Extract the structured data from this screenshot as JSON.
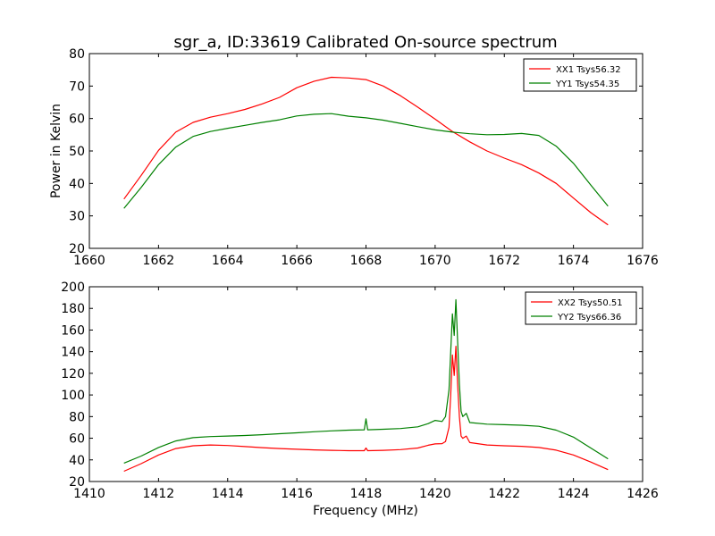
{
  "figure": {
    "title": "sgr_a, ID:33619 Calibrated On-source spectrum",
    "ylabel": "Power in Kelvin",
    "xlabel": "Frequency (MHz)"
  },
  "chart_data": [
    {
      "type": "line",
      "title": "sgr_a, ID:33619 Calibrated On-source spectrum",
      "xlabel": "",
      "ylabel": "Power in Kelvin",
      "xlim": [
        1660,
        1676
      ],
      "ylim": [
        20,
        80
      ],
      "xticks": [
        1660,
        1662,
        1664,
        1666,
        1668,
        1670,
        1672,
        1674,
        1676
      ],
      "yticks": [
        20,
        30,
        40,
        50,
        60,
        70,
        80
      ],
      "legend": "top-right",
      "grid": false,
      "series": [
        {
          "name": "XX1 Tsys56.32",
          "color": "#ff0000",
          "x": [
            1661.0,
            1661.5,
            1662.0,
            1662.5,
            1663.0,
            1663.5,
            1664.0,
            1664.5,
            1665.0,
            1665.5,
            1666.0,
            1666.5,
            1667.0,
            1667.5,
            1668.0,
            1668.5,
            1669.0,
            1669.5,
            1670.0,
            1670.5,
            1671.0,
            1671.5,
            1672.0,
            1672.5,
            1673.0,
            1673.5,
            1674.0,
            1674.5,
            1675.0
          ],
          "y": [
            35.2,
            42.5,
            50.2,
            55.8,
            58.8,
            60.4,
            61.5,
            62.8,
            64.5,
            66.5,
            69.5,
            71.5,
            72.7,
            72.5,
            72.0,
            70.0,
            67.0,
            63.5,
            59.8,
            56.0,
            52.8,
            50.0,
            47.8,
            45.8,
            43.2,
            40.0,
            35.5,
            31.0,
            27.2
          ]
        },
        {
          "name": "YY1 Tsys54.35",
          "color": "#008000",
          "x": [
            1661.0,
            1661.5,
            1662.0,
            1662.5,
            1663.0,
            1663.5,
            1664.0,
            1664.5,
            1665.0,
            1665.5,
            1666.0,
            1666.5,
            1667.0,
            1667.5,
            1668.0,
            1668.5,
            1669.0,
            1669.5,
            1670.0,
            1670.5,
            1671.0,
            1671.5,
            1672.0,
            1672.5,
            1673.0,
            1673.5,
            1674.0,
            1674.5,
            1675.0
          ],
          "y": [
            32.3,
            38.8,
            45.8,
            51.2,
            54.5,
            56.0,
            57.0,
            57.9,
            58.8,
            59.6,
            60.8,
            61.3,
            61.5,
            60.7,
            60.2,
            59.5,
            58.5,
            57.5,
            56.5,
            55.8,
            55.3,
            55.0,
            55.1,
            55.4,
            54.8,
            51.5,
            46.2,
            39.5,
            33.0
          ]
        }
      ]
    },
    {
      "type": "line",
      "title": "",
      "xlabel": "Frequency (MHz)",
      "ylabel": "",
      "xlim": [
        1410,
        1426
      ],
      "ylim": [
        20,
        200
      ],
      "xticks": [
        1410,
        1412,
        1414,
        1416,
        1418,
        1420,
        1422,
        1424,
        1426
      ],
      "yticks": [
        20,
        40,
        60,
        80,
        100,
        120,
        140,
        160,
        180,
        200
      ],
      "legend": "top-right",
      "grid": false,
      "series": [
        {
          "name": "XX2 Tsys50.51",
          "color": "#ff0000",
          "x": [
            1411.0,
            1411.5,
            1412.0,
            1412.5,
            1413.0,
            1413.5,
            1414.0,
            1414.5,
            1415.0,
            1415.5,
            1416.0,
            1416.5,
            1417.0,
            1417.5,
            1417.95,
            1418.0,
            1418.05,
            1418.5,
            1419.0,
            1419.5,
            1419.8,
            1420.0,
            1420.2,
            1420.3,
            1420.4,
            1420.45,
            1420.5,
            1420.55,
            1420.6,
            1420.65,
            1420.7,
            1420.75,
            1420.8,
            1420.9,
            1421.0,
            1421.5,
            1422.0,
            1422.5,
            1423.0,
            1423.5,
            1424.0,
            1424.5,
            1425.0
          ],
          "y": [
            29.5,
            36.5,
            44.5,
            50.5,
            53.0,
            53.8,
            53.3,
            52.3,
            51.3,
            50.5,
            49.8,
            49.2,
            48.8,
            48.5,
            48.5,
            51.0,
            48.5,
            48.8,
            49.5,
            51.0,
            53.5,
            54.8,
            55.0,
            57.0,
            70.0,
            100.0,
            137.0,
            118.0,
            145.0,
            110.0,
            80.0,
            62.0,
            60.0,
            62.0,
            56.0,
            53.8,
            53.0,
            52.5,
            51.5,
            49.0,
            44.5,
            38.0,
            31.0
          ]
        },
        {
          "name": "YY2 Tsys66.36",
          "color": "#008000",
          "x": [
            1411.0,
            1411.5,
            1412.0,
            1412.5,
            1413.0,
            1413.5,
            1414.0,
            1414.5,
            1415.0,
            1415.5,
            1416.0,
            1416.5,
            1417.0,
            1417.5,
            1417.95,
            1418.0,
            1418.05,
            1418.5,
            1419.0,
            1419.5,
            1419.8,
            1420.0,
            1420.2,
            1420.3,
            1420.4,
            1420.45,
            1420.5,
            1420.55,
            1420.6,
            1420.65,
            1420.7,
            1420.75,
            1420.8,
            1420.9,
            1421.0,
            1421.5,
            1422.0,
            1422.5,
            1423.0,
            1423.5,
            1424.0,
            1424.5,
            1425.0
          ],
          "y": [
            37.0,
            43.5,
            51.5,
            57.5,
            60.5,
            61.5,
            62.0,
            62.5,
            63.3,
            64.2,
            65.0,
            66.0,
            66.8,
            67.5,
            67.8,
            78.0,
            67.8,
            68.3,
            69.0,
            70.5,
            73.5,
            76.5,
            75.5,
            80.0,
            105.0,
            140.0,
            175.0,
            155.0,
            188.0,
            150.0,
            110.0,
            85.0,
            80.0,
            83.0,
            74.5,
            73.0,
            72.5,
            72.0,
            71.0,
            67.5,
            61.0,
            51.0,
            41.0
          ]
        }
      ]
    }
  ]
}
